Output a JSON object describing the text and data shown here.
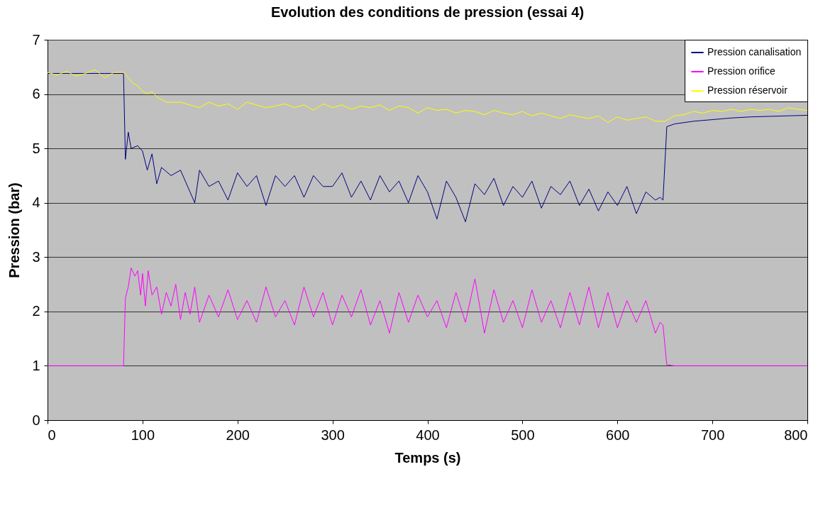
{
  "chart_data": {
    "type": "line",
    "title": "Evolution des conditions de pression  (essai 4)",
    "xlabel": "Temps (s)",
    "ylabel": "Pression (bar)",
    "xlim": [
      0,
      800
    ],
    "xticks": [
      0,
      100,
      200,
      300,
      400,
      500,
      600,
      700,
      800
    ],
    "ylim": [
      0,
      7
    ],
    "yticks": [
      0,
      1,
      2,
      3,
      4,
      5,
      6,
      7
    ],
    "grid": "y",
    "legend": "top right",
    "line_style": "solid",
    "marker": "none",
    "series": [
      {
        "name": "Pression canalisation",
        "color": "#000080",
        "x": [
          0,
          20,
          40,
          60,
          80,
          82,
          85,
          88,
          95,
          100,
          105,
          110,
          115,
          120,
          130,
          140,
          150,
          155,
          160,
          170,
          180,
          190,
          200,
          210,
          220,
          230,
          240,
          250,
          260,
          270,
          280,
          290,
          300,
          310,
          320,
          330,
          340,
          350,
          360,
          370,
          380,
          390,
          400,
          410,
          420,
          430,
          440,
          450,
          460,
          470,
          480,
          490,
          500,
          510,
          520,
          530,
          540,
          550,
          560,
          570,
          580,
          590,
          600,
          610,
          620,
          630,
          640,
          645,
          648,
          652,
          660,
          680,
          700,
          720,
          740,
          760,
          780,
          800
        ],
        "values": [
          6.38,
          6.38,
          6.38,
          6.38,
          6.38,
          4.8,
          5.3,
          5.0,
          5.05,
          4.95,
          4.6,
          4.9,
          4.35,
          4.65,
          4.5,
          4.6,
          4.2,
          4.0,
          4.6,
          4.3,
          4.4,
          4.05,
          4.55,
          4.3,
          4.5,
          3.95,
          4.5,
          4.3,
          4.5,
          4.1,
          4.5,
          4.3,
          4.3,
          4.55,
          4.1,
          4.4,
          4.05,
          4.5,
          4.2,
          4.4,
          4.0,
          4.5,
          4.2,
          3.7,
          4.4,
          4.1,
          3.65,
          4.35,
          4.15,
          4.45,
          3.95,
          4.3,
          4.1,
          4.4,
          3.9,
          4.3,
          4.15,
          4.4,
          3.95,
          4.25,
          3.85,
          4.2,
          3.95,
          4.3,
          3.8,
          4.2,
          4.05,
          4.1,
          4.05,
          5.4,
          5.45,
          5.5,
          5.53,
          5.56,
          5.58,
          5.59,
          5.6,
          5.61
        ]
      },
      {
        "name": "Pression orifice",
        "color": "#ff00ff",
        "x": [
          0,
          20,
          40,
          60,
          80,
          82,
          85,
          88,
          92,
          95,
          98,
          100,
          103,
          106,
          110,
          115,
          120,
          125,
          130,
          135,
          140,
          145,
          150,
          155,
          160,
          170,
          180,
          190,
          200,
          210,
          220,
          230,
          240,
          250,
          260,
          270,
          280,
          290,
          300,
          310,
          320,
          330,
          340,
          350,
          360,
          370,
          380,
          390,
          400,
          410,
          420,
          430,
          440,
          450,
          460,
          470,
          480,
          490,
          500,
          510,
          520,
          530,
          540,
          550,
          560,
          570,
          580,
          590,
          600,
          610,
          620,
          630,
          640,
          645,
          648,
          652,
          660,
          700,
          750,
          800
        ],
        "values": [
          1.0,
          1.0,
          1.0,
          1.0,
          1.0,
          2.25,
          2.45,
          2.8,
          2.65,
          2.75,
          2.3,
          2.7,
          2.1,
          2.75,
          2.3,
          2.45,
          1.95,
          2.35,
          2.1,
          2.5,
          1.85,
          2.35,
          1.95,
          2.45,
          1.8,
          2.3,
          1.9,
          2.4,
          1.85,
          2.2,
          1.8,
          2.45,
          1.9,
          2.2,
          1.75,
          2.45,
          1.9,
          2.35,
          1.75,
          2.3,
          1.9,
          2.4,
          1.75,
          2.2,
          1.6,
          2.35,
          1.8,
          2.3,
          1.9,
          2.2,
          1.7,
          2.35,
          1.8,
          2.6,
          1.6,
          2.4,
          1.8,
          2.2,
          1.7,
          2.4,
          1.8,
          2.2,
          1.7,
          2.35,
          1.75,
          2.45,
          1.7,
          2.35,
          1.7,
          2.2,
          1.8,
          2.2,
          1.6,
          1.8,
          1.75,
          1.02,
          1.0,
          1.0,
          1.0,
          1.0
        ]
      },
      {
        "name": "Pression réservoir",
        "color": "#ffff00",
        "x": [
          0,
          10,
          20,
          30,
          40,
          50,
          60,
          70,
          80,
          85,
          90,
          95,
          100,
          105,
          110,
          115,
          120,
          125,
          130,
          140,
          150,
          160,
          170,
          180,
          190,
          200,
          210,
          220,
          230,
          240,
          250,
          260,
          270,
          280,
          290,
          300,
          310,
          320,
          330,
          340,
          350,
          360,
          370,
          380,
          390,
          400,
          410,
          420,
          430,
          440,
          450,
          460,
          470,
          480,
          490,
          500,
          510,
          520,
          530,
          540,
          550,
          560,
          570,
          580,
          590,
          600,
          610,
          620,
          630,
          640,
          650,
          660,
          670,
          680,
          690,
          700,
          710,
          720,
          730,
          740,
          750,
          760,
          770,
          780,
          790,
          800
        ],
        "values": [
          6.4,
          6.35,
          6.42,
          6.33,
          6.38,
          6.45,
          6.3,
          6.4,
          6.4,
          6.3,
          6.2,
          6.15,
          6.05,
          6.0,
          6.05,
          5.95,
          5.9,
          5.85,
          5.85,
          5.85,
          5.8,
          5.75,
          5.85,
          5.78,
          5.82,
          5.72,
          5.85,
          5.8,
          5.75,
          5.78,
          5.82,
          5.75,
          5.8,
          5.7,
          5.82,
          5.75,
          5.8,
          5.72,
          5.78,
          5.75,
          5.8,
          5.7,
          5.78,
          5.75,
          5.65,
          5.75,
          5.7,
          5.72,
          5.65,
          5.7,
          5.68,
          5.62,
          5.7,
          5.65,
          5.62,
          5.68,
          5.6,
          5.65,
          5.6,
          5.55,
          5.62,
          5.58,
          5.55,
          5.6,
          5.48,
          5.58,
          5.52,
          5.55,
          5.58,
          5.5,
          5.5,
          5.6,
          5.62,
          5.68,
          5.65,
          5.7,
          5.68,
          5.72,
          5.68,
          5.72,
          5.7,
          5.72,
          5.68,
          5.75,
          5.72,
          5.7
        ]
      }
    ]
  }
}
